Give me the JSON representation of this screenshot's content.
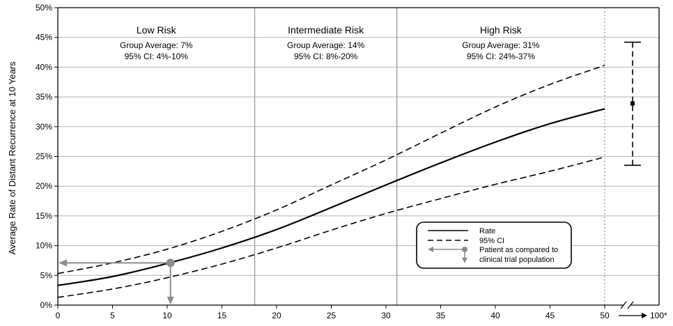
{
  "chart_data": {
    "type": "line",
    "ylabel": "Average Rate of Distant Recurrence at 10 Years",
    "xlabel": "",
    "xlim": [
      0,
      50
    ],
    "ylim": [
      0,
      50
    ],
    "x_ticks": [
      "0",
      "5",
      "10",
      "15",
      "20",
      "25",
      "30",
      "35",
      "40",
      "45",
      "50"
    ],
    "x_extra_tick": "100*",
    "y_ticks": [
      "0%",
      "5%",
      "10%",
      "15%",
      "20%",
      "25%",
      "30%",
      "35%",
      "40%",
      "45%",
      "50%"
    ],
    "grid": true,
    "risk_groups": [
      {
        "title": "Low Risk",
        "average": "Group Average: 7%",
        "ci": "95% CI: 4%-10%",
        "x_from": 0,
        "x_to": 18
      },
      {
        "title": "Intermediate Risk",
        "average": "Group Average: 14%",
        "ci": "95% CI: 8%-20%",
        "x_from": 18,
        "x_to": 31
      },
      {
        "title": "High Risk",
        "average": "Group Average: 31%",
        "ci": "95% CI: 24%-37%",
        "x_from": 31,
        "x_to": 50
      }
    ],
    "series": [
      {
        "name": "Rate",
        "style": "solid",
        "x": [
          0,
          5,
          10,
          15,
          20,
          25,
          30,
          35,
          40,
          45,
          50
        ],
        "values": [
          3.3,
          4.8,
          7.0,
          9.6,
          12.7,
          16.4,
          20.2,
          23.9,
          27.4,
          30.5,
          33.0
        ]
      },
      {
        "name": "95% CI upper",
        "style": "dashed",
        "x": [
          0,
          5,
          10,
          15,
          20,
          25,
          30,
          35,
          40,
          45,
          50
        ],
        "values": [
          5.3,
          7.1,
          9.4,
          12.4,
          16.0,
          20.2,
          24.4,
          28.9,
          33.3,
          37.1,
          40.3
        ]
      },
      {
        "name": "95% CI lower",
        "style": "dashed",
        "x": [
          0,
          5,
          10,
          15,
          20,
          25,
          30,
          35,
          40,
          45,
          50
        ],
        "values": [
          1.3,
          2.7,
          4.6,
          6.9,
          9.6,
          12.6,
          15.4,
          17.9,
          20.3,
          22.5,
          24.9
        ]
      }
    ],
    "error_bar_100": {
      "center": 33.9,
      "low": 23.5,
      "high": 44.2
    },
    "patient_marker": {
      "x": 10.3,
      "y": 7.1
    },
    "legend": {
      "position": "lower-right",
      "entries": [
        "Rate",
        "95% CI",
        "Patient as compared to",
        "clinical trial population"
      ]
    },
    "colors": {
      "line": "#000000",
      "grid": "#b3b3b3",
      "marker": "#8c8c8c",
      "divider": "#9a9a9a"
    }
  }
}
